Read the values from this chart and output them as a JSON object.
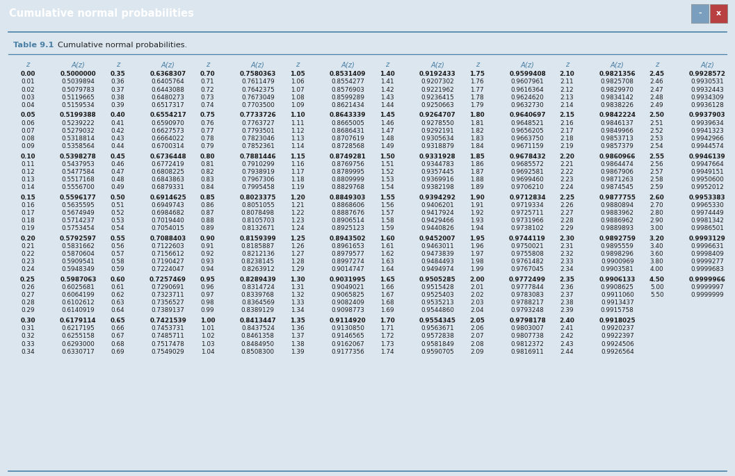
{
  "title": "Cumulative normal probabilities",
  "subtitle_bold": "Table 9.1",
  "subtitle_text": "Cumulative normal probabilities.",
  "title_bar_bg": "#6a9fbe",
  "body_bg": "#dce6ef",
  "col_header_color": "#4a7fa5",
  "text_color": "#1a1a1a",
  "line_color": "#4a7fa5",
  "data": [
    [
      [
        "0.00",
        "0.5000000"
      ],
      [
        "0.01",
        "0.5039894"
      ],
      [
        "0.02",
        "0.5079783"
      ],
      [
        "0.03",
        "0.5119665"
      ],
      [
        "0.04",
        "0.5159534"
      ],
      [
        "0.05",
        "0.5199388"
      ],
      [
        "0.06",
        "0.5239222"
      ],
      [
        "0.07",
        "0.5279032"
      ],
      [
        "0.08",
        "0.5318814"
      ],
      [
        "0.09",
        "0.5358564"
      ],
      [
        "0.10",
        "0.5398278"
      ],
      [
        "0.11",
        "0.5437953"
      ],
      [
        "0.12",
        "0.5477584"
      ],
      [
        "0.13",
        "0.5517168"
      ],
      [
        "0.14",
        "0.5556700"
      ],
      [
        "0.15",
        "0.5596177"
      ],
      [
        "0.16",
        "0.5635595"
      ],
      [
        "0.17",
        "0.5674949"
      ],
      [
        "0.18",
        "0.5714237"
      ],
      [
        "0.19",
        "0.5753454"
      ],
      [
        "0.20",
        "0.5792597"
      ],
      [
        "0.21",
        "0.5831662"
      ],
      [
        "0.22",
        "0.5870604"
      ],
      [
        "0.23",
        "0.5909541"
      ],
      [
        "0.24",
        "0.5948349"
      ],
      [
        "0.25",
        "0.5987063"
      ],
      [
        "0.26",
        "0.6025681"
      ],
      [
        "0.27",
        "0.6064199"
      ],
      [
        "0.28",
        "0.6102612"
      ],
      [
        "0.29",
        "0.6140919"
      ],
      [
        "0.30",
        "0.6179114"
      ],
      [
        "0.31",
        "0.6217195"
      ],
      [
        "0.32",
        "0.6255158"
      ],
      [
        "0.33",
        "0.6293000"
      ],
      [
        "0.34",
        "0.6330717"
      ]
    ],
    [
      [
        "0.35",
        "0.6368307"
      ],
      [
        "0.36",
        "0.6405764"
      ],
      [
        "0.37",
        "0.6443088"
      ],
      [
        "0.38",
        "0.6480273"
      ],
      [
        "0.39",
        "0.6517317"
      ],
      [
        "0.40",
        "0.6554217"
      ],
      [
        "0.41",
        "0.6590970"
      ],
      [
        "0.42",
        "0.6627573"
      ],
      [
        "0.43",
        "0.6664022"
      ],
      [
        "0.44",
        "0.6700314"
      ],
      [
        "0.45",
        "0.6736448"
      ],
      [
        "0.46",
        "0.6772419"
      ],
      [
        "0.47",
        "0.6808225"
      ],
      [
        "0.48",
        "0.6843863"
      ],
      [
        "0.49",
        "0.6879331"
      ],
      [
        "0.50",
        "0.6914625"
      ],
      [
        "0.51",
        "0.6949743"
      ],
      [
        "0.52",
        "0.6984682"
      ],
      [
        "0.53",
        "0.7019440"
      ],
      [
        "0.54",
        "0.7054015"
      ],
      [
        "0.55",
        "0.7088403"
      ],
      [
        "0.56",
        "0.7122603"
      ],
      [
        "0.57",
        "0.7156612"
      ],
      [
        "0.58",
        "0.7190427"
      ],
      [
        "0.59",
        "0.7224047"
      ],
      [
        "0.60",
        "0.7257469"
      ],
      [
        "0.61",
        "0.7290691"
      ],
      [
        "0.62",
        "0.7323711"
      ],
      [
        "0.63",
        "0.7356527"
      ],
      [
        "0.64",
        "0.7389137"
      ],
      [
        "0.65",
        "0.7421539"
      ],
      [
        "0.66",
        "0.7453731"
      ],
      [
        "0.67",
        "0.7485711"
      ],
      [
        "0.68",
        "0.7517478"
      ],
      [
        "0.69",
        "0.7549029"
      ]
    ],
    [
      [
        "0.70",
        "0.7580363"
      ],
      [
        "0.71",
        "0.7611479"
      ],
      [
        "0.72",
        "0.7642375"
      ],
      [
        "0.73",
        "0.7673049"
      ],
      [
        "0.74",
        "0.7703500"
      ],
      [
        "0.75",
        "0.7733726"
      ],
      [
        "0.76",
        "0.7763727"
      ],
      [
        "0.77",
        "0.7793501"
      ],
      [
        "0.78",
        "0.7823046"
      ],
      [
        "0.79",
        "0.7852361"
      ],
      [
        "0.80",
        "0.7881446"
      ],
      [
        "0.81",
        "0.7910299"
      ],
      [
        "0.82",
        "0.7938919"
      ],
      [
        "0.83",
        "0.7967306"
      ],
      [
        "0.84",
        "0.7995458"
      ],
      [
        "0.85",
        "0.8023375"
      ],
      [
        "0.86",
        "0.8051055"
      ],
      [
        "0.87",
        "0.8078498"
      ],
      [
        "0.88",
        "0.8105703"
      ],
      [
        "0.89",
        "0.8132671"
      ],
      [
        "0.90",
        "0.8159399"
      ],
      [
        "0.91",
        "0.8185887"
      ],
      [
        "0.92",
        "0.8212136"
      ],
      [
        "0.93",
        "0.8238145"
      ],
      [
        "0.94",
        "0.8263912"
      ],
      [
        "0.95",
        "0.8289439"
      ],
      [
        "0.96",
        "0.8314724"
      ],
      [
        "0.97",
        "0.8339768"
      ],
      [
        "0.98",
        "0.8364569"
      ],
      [
        "0.99",
        "0.8389129"
      ],
      [
        "1.00",
        "0.8413447"
      ],
      [
        "1.01",
        "0.8437524"
      ],
      [
        "1.02",
        "0.8461358"
      ],
      [
        "1.03",
        "0.8484950"
      ],
      [
        "1.04",
        "0.8508300"
      ]
    ],
    [
      [
        "1.05",
        "0.8531409"
      ],
      [
        "1.06",
        "0.8554277"
      ],
      [
        "1.07",
        "0.8576903"
      ],
      [
        "1.08",
        "0.8599289"
      ],
      [
        "1.09",
        "0.8621434"
      ],
      [
        "1.10",
        "0.8643339"
      ],
      [
        "1.11",
        "0.8665005"
      ],
      [
        "1.12",
        "0.8686431"
      ],
      [
        "1.13",
        "0.8707619"
      ],
      [
        "1.14",
        "0.8728568"
      ],
      [
        "1.15",
        "0.8749281"
      ],
      [
        "1.16",
        "0.8769756"
      ],
      [
        "1.17",
        "0.8789995"
      ],
      [
        "1.18",
        "0.8809999"
      ],
      [
        "1.19",
        "0.8829768"
      ],
      [
        "1.20",
        "0.8849303"
      ],
      [
        "1.21",
        "0.8868606"
      ],
      [
        "1.22",
        "0.8887676"
      ],
      [
        "1.23",
        "0.8906514"
      ],
      [
        "1.24",
        "0.8925123"
      ],
      [
        "1.25",
        "0.8943502"
      ],
      [
        "1.26",
        "0.8961653"
      ],
      [
        "1.27",
        "0.8979577"
      ],
      [
        "1.28",
        "0.8997274"
      ],
      [
        "1.29",
        "0.9014747"
      ],
      [
        "1.30",
        "0.9031995"
      ],
      [
        "1.31",
        "0.9049021"
      ],
      [
        "1.32",
        "0.9065825"
      ],
      [
        "1.33",
        "0.9082409"
      ],
      [
        "1.34",
        "0.9098773"
      ],
      [
        "1.35",
        "0.9114920"
      ],
      [
        "1.36",
        "0.9130850"
      ],
      [
        "1.37",
        "0.9146565"
      ],
      [
        "1.38",
        "0.9162067"
      ],
      [
        "1.39",
        "0.9177356"
      ]
    ],
    [
      [
        "1.40",
        "0.9192433"
      ],
      [
        "1.41",
        "0.9207302"
      ],
      [
        "1.42",
        "0.9221962"
      ],
      [
        "1.43",
        "0.9236415"
      ],
      [
        "1.44",
        "0.9250663"
      ],
      [
        "1.45",
        "0.9264707"
      ],
      [
        "1.46",
        "0.9278550"
      ],
      [
        "1.47",
        "0.9292191"
      ],
      [
        "1.48",
        "0.9305634"
      ],
      [
        "1.49",
        "0.9318879"
      ],
      [
        "1.50",
        "0.9331928"
      ],
      [
        "1.51",
        "0.9344783"
      ],
      [
        "1.52",
        "0.9357445"
      ],
      [
        "1.53",
        "0.9369916"
      ],
      [
        "1.54",
        "0.9382198"
      ],
      [
        "1.55",
        "0.9394292"
      ],
      [
        "1.56",
        "0.9406201"
      ],
      [
        "1.57",
        "0.9417924"
      ],
      [
        "1.58",
        "0.9429466"
      ],
      [
        "1.59",
        "0.9440826"
      ],
      [
        "1.60",
        "0.9452007"
      ],
      [
        "1.61",
        "0.9463011"
      ],
      [
        "1.62",
        "0.9473839"
      ],
      [
        "1.63",
        "0.9484493"
      ],
      [
        "1.64",
        "0.9494974"
      ],
      [
        "1.65",
        "0.9505285"
      ],
      [
        "1.66",
        "0.9515428"
      ],
      [
        "1.67",
        "0.9525403"
      ],
      [
        "1.68",
        "0.9535213"
      ],
      [
        "1.69",
        "0.9544860"
      ],
      [
        "1.70",
        "0.9554345"
      ],
      [
        "1.71",
        "0.9563671"
      ],
      [
        "1.72",
        "0.9572838"
      ],
      [
        "1.73",
        "0.9581849"
      ],
      [
        "1.74",
        "0.9590705"
      ]
    ],
    [
      [
        "1.75",
        "0.9599408"
      ],
      [
        "1.76",
        "0.9607961"
      ],
      [
        "1.77",
        "0.9616364"
      ],
      [
        "1.78",
        "0.9624620"
      ],
      [
        "1.79",
        "0.9632730"
      ],
      [
        "1.80",
        "0.9640697"
      ],
      [
        "1.81",
        "0.9648521"
      ],
      [
        "1.82",
        "0.9656205"
      ],
      [
        "1.83",
        "0.9663750"
      ],
      [
        "1.84",
        "0.9671159"
      ],
      [
        "1.85",
        "0.9678432"
      ],
      [
        "1.86",
        "0.9685572"
      ],
      [
        "1.87",
        "0.9692581"
      ],
      [
        "1.88",
        "0.9699460"
      ],
      [
        "1.89",
        "0.9706210"
      ],
      [
        "1.90",
        "0.9712834"
      ],
      [
        "1.91",
        "0.9719334"
      ],
      [
        "1.92",
        "0.9725711"
      ],
      [
        "1.93",
        "0.9731966"
      ],
      [
        "1.94",
        "0.9738102"
      ],
      [
        "1.95",
        "0.9744119"
      ],
      [
        "1.96",
        "0.9750021"
      ],
      [
        "1.97",
        "0.9755808"
      ],
      [
        "1.98",
        "0.9761482"
      ],
      [
        "1.99",
        "0.9767045"
      ],
      [
        "2.00",
        "0.9772499"
      ],
      [
        "2.01",
        "0.9777844"
      ],
      [
        "2.02",
        "0.9783083"
      ],
      [
        "2.03",
        "0.9788217"
      ],
      [
        "2.04",
        "0.9793248"
      ],
      [
        "2.05",
        "0.9798178"
      ],
      [
        "2.06",
        "0.9803007"
      ],
      [
        "2.07",
        "0.9807738"
      ],
      [
        "2.08",
        "0.9812372"
      ],
      [
        "2.09",
        "0.9816911"
      ]
    ],
    [
      [
        "2.10",
        "0.9821356"
      ],
      [
        "2.11",
        "0.9825708"
      ],
      [
        "2.12",
        "0.9829970"
      ],
      [
        "2.13",
        "0.9834142"
      ],
      [
        "2.14",
        "0.9838226"
      ],
      [
        "2.15",
        "0.9842224"
      ],
      [
        "2.16",
        "0.9846137"
      ],
      [
        "2.17",
        "0.9849966"
      ],
      [
        "2.18",
        "0.9853713"
      ],
      [
        "2.19",
        "0.9857379"
      ],
      [
        "2.20",
        "0.9860966"
      ],
      [
        "2.21",
        "0.9864474"
      ],
      [
        "2.22",
        "0.9867906"
      ],
      [
        "2.23",
        "0.9871263"
      ],
      [
        "2.24",
        "0.9874545"
      ],
      [
        "2.25",
        "0.9877755"
      ],
      [
        "2.26",
        "0.9880894"
      ],
      [
        "2.27",
        "0.9883962"
      ],
      [
        "2.28",
        "0.9886962"
      ],
      [
        "2.29",
        "0.9889893"
      ],
      [
        "2.30",
        "0.9892759"
      ],
      [
        "2.31",
        "0.9895559"
      ],
      [
        "2.32",
        "0.9898296"
      ],
      [
        "2.33",
        "0.9900969"
      ],
      [
        "2.34",
        "0.9903581"
      ],
      [
        "2.35",
        "0.9906133"
      ],
      [
        "2.36",
        "0.9908625"
      ],
      [
        "2.37",
        "0.9911060"
      ],
      [
        "2.38",
        "0.9913437"
      ],
      [
        "2.39",
        "0.9915758"
      ],
      [
        "2.40",
        "0.9918025"
      ],
      [
        "2.41",
        "0.9920237"
      ],
      [
        "2.42",
        "0.9922397"
      ],
      [
        "2.43",
        "0.9924506"
      ],
      [
        "2.44",
        "0.9926564"
      ]
    ],
    [
      [
        "2.45",
        "0.9928572"
      ],
      [
        "2.46",
        "0.9930531"
      ],
      [
        "2.47",
        "0.9932443"
      ],
      [
        "2.48",
        "0.9934309"
      ],
      [
        "2.49",
        "0.9936128"
      ],
      [
        "2.50",
        "0.9937903"
      ],
      [
        "2.51",
        "0.9939634"
      ],
      [
        "2.52",
        "0.9941323"
      ],
      [
        "2.53",
        "0.9942966"
      ],
      [
        "2.54",
        "0.9944574"
      ],
      [
        "2.55",
        "0.9946139"
      ],
      [
        "2.56",
        "0.9947664"
      ],
      [
        "2.57",
        "0.9949151"
      ],
      [
        "2.58",
        "0.9950600"
      ],
      [
        "2.59",
        "0.9952012"
      ],
      [
        "2.60",
        "0.9953383"
      ],
      [
        "2.70",
        "0.9965330"
      ],
      [
        "2.80",
        "0.9974449"
      ],
      [
        "2.90",
        "0.9981342"
      ],
      [
        "3.00",
        "0.9986501"
      ],
      [
        "3.20",
        "0.9993129"
      ],
      [
        "3.40",
        "0.9996631"
      ],
      [
        "3.60",
        "0.9998409"
      ],
      [
        "3.80",
        "0.9999277"
      ],
      [
        "4.00",
        "0.9999683"
      ],
      [
        "4.50",
        "0.9999966"
      ],
      [
        "5.00",
        "0.9999997"
      ],
      [
        "5.50",
        "0.9999999"
      ],
      [
        "",
        ""
      ],
      [
        "",
        ""
      ],
      [
        "",
        ""
      ],
      [
        "",
        ""
      ],
      [
        "",
        ""
      ],
      [
        "",
        ""
      ],
      [
        "",
        ""
      ]
    ]
  ]
}
